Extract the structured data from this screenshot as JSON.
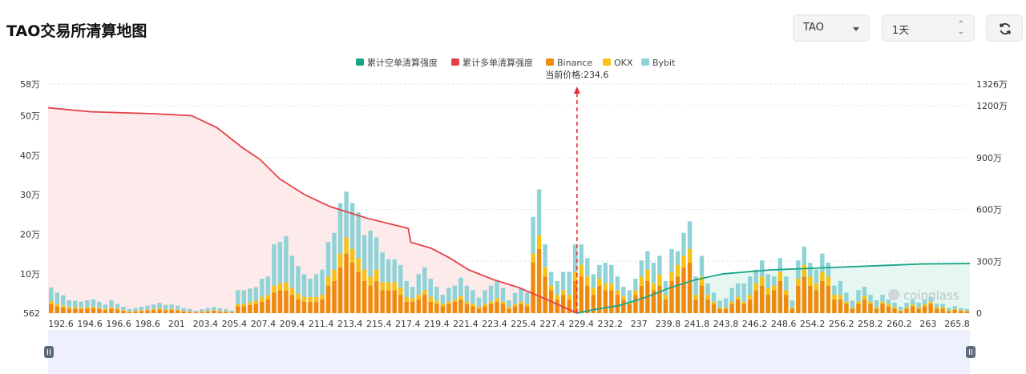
{
  "header": {
    "title": "TAO交易所清算地图",
    "coin_select": "TAO",
    "range_select": "1天"
  },
  "watermark": "coinglass",
  "chart_data": {
    "type": "bar",
    "price_marker": {
      "label": "当前价格:234.6",
      "value": 234.6
    },
    "legend": [
      {
        "name": "累计空单清算强度",
        "color": "#1aa58a"
      },
      {
        "name": "累计多单清算强度",
        "color": "#e5404a"
      },
      {
        "name": "Binance",
        "color": "#f08a0b"
      },
      {
        "name": "OKX",
        "color": "#f6c315"
      },
      {
        "name": "Bybit",
        "color": "#8fd3d6"
      }
    ],
    "left_axis": {
      "ticks": [
        "562",
        "10万",
        "20万",
        "30万",
        "40万",
        "50万",
        "58万"
      ],
      "values": [
        562,
        100000,
        200000,
        300000,
        400000,
        500000,
        580000
      ],
      "ylim": [
        562,
        580000
      ]
    },
    "right_axis": {
      "ticks": [
        "0",
        "300万",
        "600万",
        "900万",
        "1200万",
        "1326万"
      ],
      "values": [
        0,
        3000000,
        6000000,
        9000000,
        12000000,
        13260000
      ],
      "ylim": [
        0,
        13260000
      ]
    },
    "x_ticks": [
      "192.6",
      "194.6",
      "196.6",
      "198.6",
      "201",
      "203.4",
      "205.4",
      "207.4",
      "209.4",
      "211.4",
      "213.4",
      "215.4",
      "217.4",
      "219.4",
      "221.4",
      "223.4",
      "225.4",
      "227.4",
      "229.4",
      "232.2",
      "237",
      "239.8",
      "241.8",
      "243.8",
      "246.2",
      "248.6",
      "254.2",
      "256.2",
      "258.2",
      "260.2",
      "263",
      "265.8"
    ],
    "x_range": [
      192.6,
      265.8
    ],
    "bars": [
      [
        0.04,
        0.012,
        0.06
      ],
      [
        0.03,
        0.01,
        0.05
      ],
      [
        0.025,
        0.008,
        0.045
      ],
      [
        0.02,
        0.006,
        0.03
      ],
      [
        0.02,
        0.006,
        0.028
      ],
      [
        0.018,
        0.006,
        0.026
      ],
      [
        0.02,
        0.006,
        0.03
      ],
      [
        0.022,
        0.006,
        0.032
      ],
      [
        0.018,
        0.005,
        0.027
      ],
      [
        0.014,
        0.004,
        0.02
      ],
      [
        0.02,
        0.006,
        0.03
      ],
      [
        0.016,
        0.004,
        0.02
      ],
      [
        0.01,
        0.003,
        0.015
      ],
      [
        0.006,
        0.002,
        0.01
      ],
      [
        0.008,
        0.002,
        0.012
      ],
      [
        0.01,
        0.003,
        0.015
      ],
      [
        0.012,
        0.003,
        0.018
      ],
      [
        0.014,
        0.004,
        0.02
      ],
      [
        0.016,
        0.005,
        0.024
      ],
      [
        0.012,
        0.004,
        0.02
      ],
      [
        0.014,
        0.004,
        0.02
      ],
      [
        0.012,
        0.003,
        0.018
      ],
      [
        0.008,
        0.002,
        0.012
      ],
      [
        0.006,
        0.002,
        0.01
      ],
      [
        0.004,
        0.001,
        0.006
      ],
      [
        0.006,
        0.002,
        0.009
      ],
      [
        0.008,
        0.002,
        0.012
      ],
      [
        0.01,
        0.003,
        0.014
      ],
      [
        0.008,
        0.002,
        0.012
      ],
      [
        0.006,
        0.002,
        0.009
      ],
      [
        0.004,
        0.001,
        0.006
      ],
      [
        0.03,
        0.01,
        0.06
      ],
      [
        0.03,
        0.01,
        0.06
      ],
      [
        0.035,
        0.012,
        0.06
      ],
      [
        0.04,
        0.014,
        0.06
      ],
      [
        0.05,
        0.02,
        0.08
      ],
      [
        0.06,
        0.02,
        0.08
      ],
      [
        0.09,
        0.03,
        0.18
      ],
      [
        0.1,
        0.03,
        0.18
      ],
      [
        0.1,
        0.035,
        0.2
      ],
      [
        0.08,
        0.03,
        0.14
      ],
      [
        0.06,
        0.025,
        0.12
      ],
      [
        0.05,
        0.02,
        0.1
      ],
      [
        0.05,
        0.02,
        0.08
      ],
      [
        0.05,
        0.02,
        0.1
      ],
      [
        0.06,
        0.02,
        0.11
      ],
      [
        0.12,
        0.04,
        0.15
      ],
      [
        0.14,
        0.05,
        0.16
      ],
      [
        0.2,
        0.06,
        0.22
      ],
      [
        0.26,
        0.07,
        0.2
      ],
      [
        0.22,
        0.06,
        0.2
      ],
      [
        0.18,
        0.06,
        0.2
      ],
      [
        0.14,
        0.05,
        0.15
      ],
      [
        0.12,
        0.04,
        0.2
      ],
      [
        0.14,
        0.05,
        0.14
      ],
      [
        0.1,
        0.035,
        0.13
      ],
      [
        0.1,
        0.035,
        0.1
      ],
      [
        0.1,
        0.035,
        0.1
      ],
      [
        0.08,
        0.03,
        0.1
      ],
      [
        0.05,
        0.02,
        0.07
      ],
      [
        0.05,
        0.015,
        0.05
      ],
      [
        0.06,
        0.02,
        0.09
      ],
      [
        0.08,
        0.02,
        0.1
      ],
      [
        0.05,
        0.02,
        0.08
      ],
      [
        0.04,
        0.015,
        0.06
      ],
      [
        0.03,
        0.01,
        0.04
      ],
      [
        0.04,
        0.01,
        0.06
      ],
      [
        0.05,
        0.01,
        0.06
      ],
      [
        0.06,
        0.015,
        0.08
      ],
      [
        0.04,
        0.01,
        0.07
      ],
      [
        0.03,
        0.01,
        0.06
      ],
      [
        0.02,
        0.008,
        0.04
      ],
      [
        0.03,
        0.01,
        0.06
      ],
      [
        0.04,
        0.01,
        0.07
      ],
      [
        0.05,
        0.015,
        0.08
      ],
      [
        0.04,
        0.01,
        0.06
      ],
      [
        0.02,
        0.006,
        0.03
      ],
      [
        0.03,
        0.008,
        0.05
      ],
      [
        0.04,
        0.01,
        0.06
      ],
      [
        0.03,
        0.01,
        0.05
      ],
      [
        0.22,
        0.04,
        0.16
      ],
      [
        0.28,
        0.06,
        0.2
      ],
      [
        0.16,
        0.04,
        0.1
      ],
      [
        0.1,
        0.02,
        0.06
      ],
      [
        0.06,
        0.02,
        0.06
      ],
      [
        0.08,
        0.02,
        0.08
      ],
      [
        0.06,
        0.02,
        0.1
      ],
      [
        0.14,
        0.04,
        0.12
      ],
      [
        0.16,
        0.05,
        0.09
      ],
      [
        0.12,
        0.04,
        0.08
      ],
      [
        0.08,
        0.03,
        0.06
      ],
      [
        0.12,
        0.03,
        0.06
      ],
      [
        0.1,
        0.03,
        0.09
      ],
      [
        0.1,
        0.03,
        0.08
      ],
      [
        0.08,
        0.02,
        0.06
      ],
      [
        0.06,
        0.015,
        0.04
      ],
      [
        0.04,
        0.01,
        0.05
      ],
      [
        0.08,
        0.02,
        0.05
      ],
      [
        0.12,
        0.04,
        0.07
      ],
      [
        0.14,
        0.05,
        0.08
      ],
      [
        0.1,
        0.03,
        0.09
      ],
      [
        0.12,
        0.05,
        0.08
      ],
      [
        0.06,
        0.02,
        0.06
      ],
      [
        0.14,
        0.04,
        0.1
      ],
      [
        0.16,
        0.05,
        0.06
      ],
      [
        0.2,
        0.05,
        0.1
      ],
      [
        0.22,
        0.06,
        0.12
      ],
      [
        0.06,
        0.02,
        0.08
      ],
      [
        0.12,
        0.04,
        0.09
      ],
      [
        0.06,
        0.02,
        0.05
      ],
      [
        0.04,
        0.01,
        0.04
      ],
      [
        0.02,
        0.005,
        0.03
      ],
      [
        0.02,
        0.005,
        0.04
      ],
      [
        0.04,
        0.01,
        0.06
      ],
      [
        0.06,
        0.01,
        0.06
      ],
      [
        0.04,
        0.01,
        0.08
      ],
      [
        0.06,
        0.02,
        0.08
      ],
      [
        0.1,
        0.03,
        0.06
      ],
      [
        0.12,
        0.04,
        0.07
      ],
      [
        0.08,
        0.03,
        0.06
      ],
      [
        0.1,
        0.02,
        0.04
      ],
      [
        0.14,
        0.04,
        0.06
      ],
      [
        0.08,
        0.02,
        0.06
      ],
      [
        0.02,
        0.005,
        0.03
      ],
      [
        0.12,
        0.03,
        0.08
      ],
      [
        0.16,
        0.05,
        0.08
      ],
      [
        0.12,
        0.04,
        0.06
      ],
      [
        0.1,
        0.03,
        0.06
      ],
      [
        0.14,
        0.04,
        0.08
      ],
      [
        0.12,
        0.04,
        0.06
      ],
      [
        0.06,
        0.02,
        0.04
      ],
      [
        0.06,
        0.02,
        0.06
      ],
      [
        0.04,
        0.01,
        0.04
      ],
      [
        0.02,
        0.005,
        0.03
      ],
      [
        0.04,
        0.01,
        0.05
      ],
      [
        0.06,
        0.015,
        0.04
      ],
      [
        0.04,
        0.01,
        0.03
      ],
      [
        0.02,
        0.006,
        0.03
      ],
      [
        0.04,
        0.01,
        0.03
      ],
      [
        0.03,
        0.01,
        0.02
      ],
      [
        0.02,
        0.006,
        0.02
      ],
      [
        0.01,
        0.003,
        0.015
      ],
      [
        0.02,
        0.005,
        0.02
      ],
      [
        0.03,
        0.008,
        0.02
      ],
      [
        0.02,
        0.006,
        0.02
      ],
      [
        0.03,
        0.01,
        0.02
      ],
      [
        0.04,
        0.01,
        0.02
      ],
      [
        0.02,
        0.006,
        0.016
      ],
      [
        0.02,
        0.006,
        0.015
      ],
      [
        0.01,
        0.003,
        0.01
      ],
      [
        0.015,
        0.004,
        0.012
      ],
      [
        0.01,
        0.003,
        0.01
      ],
      [
        0.008,
        0.002,
        0.008
      ]
    ],
    "long_curve": [
      [
        192.6,
        520000
      ],
      [
        196,
        510000
      ],
      [
        201,
        505000
      ],
      [
        204,
        500000
      ],
      [
        206,
        470000
      ],
      [
        208,
        420000
      ],
      [
        209.4,
        390000
      ],
      [
        211,
        340000
      ],
      [
        213,
        300000
      ],
      [
        215,
        270000
      ],
      [
        218,
        240000
      ],
      [
        221.2,
        215000
      ],
      [
        221.4,
        180000
      ],
      [
        223,
        165000
      ],
      [
        224.5,
        140000
      ],
      [
        226,
        110000
      ],
      [
        228,
        85000
      ],
      [
        230,
        65000
      ],
      [
        232.2,
        35000
      ],
      [
        234.6,
        562
      ]
    ],
    "short_curve": [
      [
        234.6,
        562
      ],
      [
        236,
        10000
      ],
      [
        238,
        20000
      ],
      [
        240,
        40000
      ],
      [
        242,
        65000
      ],
      [
        244,
        85000
      ],
      [
        246.2,
        100000
      ],
      [
        250,
        110000
      ],
      [
        254,
        115000
      ],
      [
        258,
        120000
      ],
      [
        262,
        125000
      ],
      [
        265.8,
        126000
      ]
    ]
  }
}
